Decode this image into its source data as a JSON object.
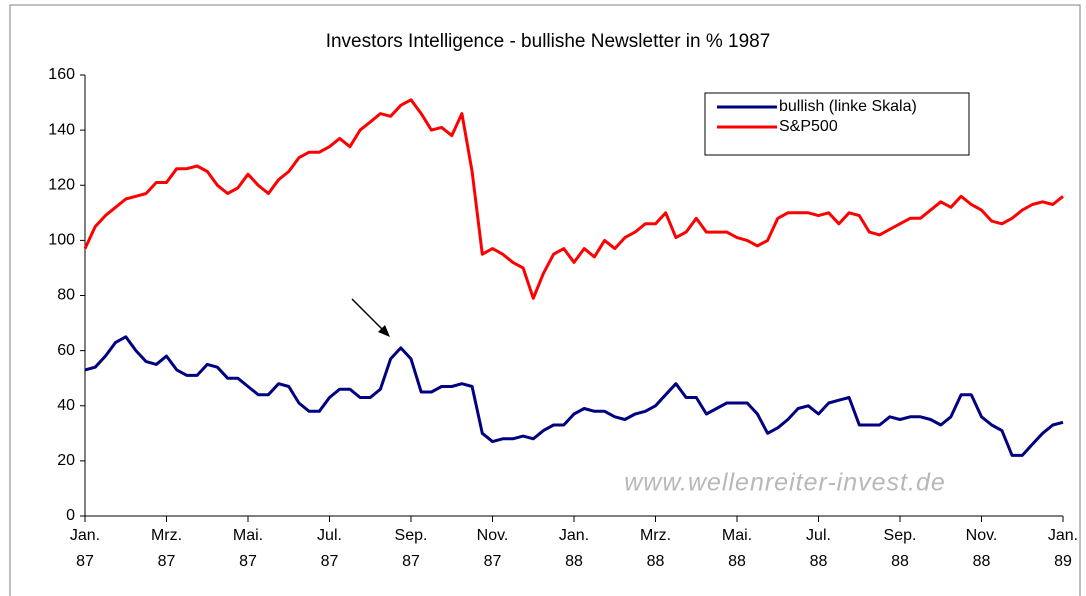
{
  "chart_data": {
    "type": "line",
    "title": "Investors Intelligence - bullishe Newsletter in % 1987",
    "annotation": "www.wellenreiter-invest.de",
    "legend": "top-right",
    "x": [
      0,
      0.25,
      0.5,
      0.75,
      1,
      1.25,
      1.5,
      1.75,
      2,
      2.25,
      2.5,
      2.75,
      3,
      3.25,
      3.5,
      3.75,
      4,
      4.25,
      4.5,
      4.75,
      5,
      5.25,
      5.5,
      5.75,
      6,
      6.25,
      6.5,
      6.75,
      7,
      7.25,
      7.5,
      7.75,
      8,
      8.25,
      8.5,
      8.75,
      9,
      9.25,
      9.5,
      9.75,
      10,
      10.25,
      10.5,
      10.75,
      11,
      11.25,
      11.5,
      11.75,
      12,
      12.25,
      12.5,
      12.75,
      13,
      13.25,
      13.5,
      13.75,
      14,
      14.25,
      14.5,
      14.75,
      15,
      15.25,
      15.5,
      15.75,
      16,
      16.25,
      16.5,
      16.75,
      17,
      17.25,
      17.5,
      17.75,
      18,
      18.25,
      18.5,
      18.75,
      19,
      19.25,
      19.5,
      19.75,
      20,
      20.25,
      20.5,
      20.75,
      21,
      21.25,
      21.5,
      21.75,
      22,
      22.25,
      22.5,
      22.75,
      23,
      23.25,
      23.5,
      23.75,
      24
    ],
    "series": [
      {
        "name": "bullish (linke Skala)",
        "color": "#000080",
        "values": [
          53,
          54,
          58,
          63,
          65,
          60,
          56,
          55,
          58,
          53,
          51,
          51,
          55,
          54,
          50,
          50,
          47,
          44,
          44,
          48,
          47,
          41,
          38,
          38,
          43,
          46,
          46,
          43,
          43,
          46,
          57,
          61,
          57,
          45,
          45,
          47,
          47,
          48,
          47,
          30,
          27,
          28,
          28,
          29,
          28,
          31,
          33,
          33,
          37,
          39,
          38,
          38,
          36,
          35,
          37,
          38,
          40,
          44,
          48,
          43,
          43,
          37,
          39,
          41,
          41,
          41,
          37,
          30,
          32,
          35,
          39,
          40,
          37,
          41,
          42,
          43,
          33,
          33,
          33,
          36,
          35,
          36,
          36,
          35,
          33,
          36,
          44,
          44,
          36,
          33,
          31,
          22,
          22,
          26,
          30,
          33,
          34
        ]
      },
      {
        "name": "S&P500",
        "color": "#ff0000",
        "values": [
          97,
          105,
          109,
          112,
          115,
          116,
          117,
          121,
          121,
          126,
          126,
          127,
          125,
          120,
          117,
          119,
          124,
          120,
          117,
          122,
          125,
          130,
          132,
          132,
          134,
          137,
          134,
          140,
          143,
          146,
          145,
          149,
          151,
          146,
          140,
          141,
          138,
          146,
          125,
          95,
          97,
          95,
          92,
          90,
          79,
          88,
          95,
          97,
          92,
          97,
          94,
          100,
          97,
          101,
          103,
          106,
          106,
          110,
          101,
          103,
          108,
          103,
          103,
          103,
          101,
          100,
          98,
          100,
          108,
          110,
          110,
          110,
          109,
          110,
          106,
          110,
          109,
          103,
          102,
          104,
          106,
          108,
          108,
          111,
          114,
          112,
          116,
          113,
          111,
          107,
          106,
          108,
          111,
          113,
          114,
          113,
          116
        ]
      }
    ],
    "xlim": [
      0,
      24
    ],
    "xticks": [
      {
        "value": 0,
        "label": "Jan.\n87"
      },
      {
        "value": 2,
        "label": "Mrz.\n87"
      },
      {
        "value": 4,
        "label": "Mai.\n87"
      },
      {
        "value": 6,
        "label": "Jul.\n87"
      },
      {
        "value": 8,
        "label": "Sep.\n87"
      },
      {
        "value": 10,
        "label": "Nov.\n87"
      },
      {
        "value": 12,
        "label": "Jan.\n88"
      },
      {
        "value": 14,
        "label": "Mrz.\n88"
      },
      {
        "value": 16,
        "label": "Mai.\n88"
      },
      {
        "value": 18,
        "label": "Jul.\n88"
      },
      {
        "value": 20,
        "label": "Sep.\n88"
      },
      {
        "value": 22,
        "label": "Nov.\n88"
      },
      {
        "value": 24,
        "label": "Jan.\n89"
      }
    ],
    "ylim": [
      0,
      160
    ],
    "yticks": [
      0,
      20,
      40,
      60,
      80,
      100,
      120,
      140,
      160
    ],
    "grid": false
  }
}
